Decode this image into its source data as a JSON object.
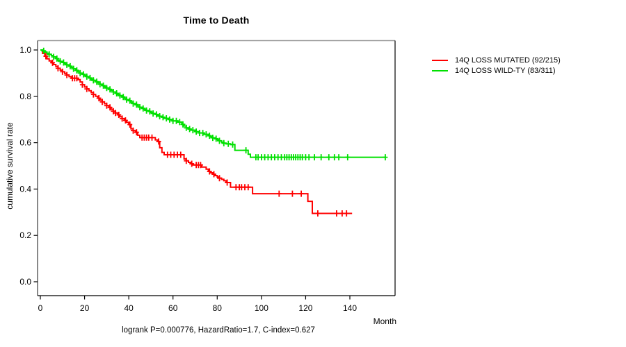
{
  "figure": {
    "title": "Time to Death",
    "x_axis_label": "Month",
    "y_axis_label": "cumulative survival rate",
    "stats_annotation": "logrank P=0.000776, HazardRatio=1.7, C-index=0.627"
  },
  "legend": {
    "entries": [
      {
        "label": "14Q LOSS MUTATED (92/215)",
        "color": "#ff0000"
      },
      {
        "label": "14Q LOSS WILD-TY (83/311)",
        "color": "#00e000"
      }
    ]
  },
  "chart_data": {
    "type": "line",
    "variant": "kaplan_meier_step_curve",
    "title": "Time to Death",
    "xlabel": "Month",
    "ylabel": "cumulative survival rate",
    "xlim": [
      0,
      160
    ],
    "ylim": [
      0.0,
      1.0
    ],
    "xticks": [
      0,
      20,
      40,
      60,
      80,
      100,
      120,
      140
    ],
    "yticks": [
      0.0,
      0.2,
      0.4,
      0.6,
      0.8,
      1.0
    ],
    "grid": false,
    "legend_position": "outside-top-right",
    "annotation": "logrank P=0.000776, HazardRatio=1.7, C-index=0.627",
    "axis_colors": {
      "top": "#9a9a9a",
      "left": "#3a3a3a",
      "bottom": "#000000",
      "right": "#000000"
    },
    "series": [
      {
        "name": "14Q LOSS MUTATED (92/215)",
        "color": "#ff0000",
        "steps": [
          [
            0,
            1.0
          ],
          [
            1,
            0.985
          ],
          [
            2,
            0.973
          ],
          [
            3,
            0.962
          ],
          [
            4,
            0.953
          ],
          [
            5,
            0.945
          ],
          [
            6,
            0.937
          ],
          [
            7,
            0.929
          ],
          [
            8,
            0.921
          ],
          [
            9,
            0.913
          ],
          [
            10,
            0.906
          ],
          [
            11,
            0.899
          ],
          [
            12,
            0.892
          ],
          [
            13,
            0.885
          ],
          [
            14,
            0.878
          ],
          [
            17,
            0.872
          ],
          [
            18,
            0.862
          ],
          [
            19,
            0.85
          ],
          [
            20,
            0.84
          ],
          [
            21,
            0.832
          ],
          [
            22,
            0.824
          ],
          [
            23,
            0.816
          ],
          [
            24,
            0.808
          ],
          [
            25,
            0.8
          ],
          [
            26,
            0.792
          ],
          [
            27,
            0.784
          ],
          [
            28,
            0.776
          ],
          [
            29,
            0.768
          ],
          [
            30,
            0.76
          ],
          [
            31,
            0.752
          ],
          [
            32,
            0.744
          ],
          [
            33,
            0.736
          ],
          [
            34,
            0.728
          ],
          [
            35,
            0.72
          ],
          [
            36,
            0.712
          ],
          [
            37,
            0.704
          ],
          [
            38,
            0.696
          ],
          [
            39,
            0.688
          ],
          [
            40,
            0.678
          ],
          [
            41,
            0.66
          ],
          [
            42,
            0.652
          ],
          [
            43,
            0.645
          ],
          [
            44,
            0.632
          ],
          [
            45,
            0.622
          ],
          [
            52,
            0.612
          ],
          [
            53,
            0.605
          ],
          [
            54,
            0.578
          ],
          [
            55,
            0.558
          ],
          [
            56,
            0.548
          ],
          [
            65,
            0.53
          ],
          [
            66,
            0.522
          ],
          [
            67,
            0.515
          ],
          [
            68,
            0.509
          ],
          [
            69,
            0.504
          ],
          [
            73,
            0.495
          ],
          [
            75,
            0.486
          ],
          [
            76,
            0.476
          ],
          [
            77,
            0.47
          ],
          [
            78,
            0.464
          ],
          [
            79,
            0.458
          ],
          [
            80,
            0.452
          ],
          [
            81,
            0.447
          ],
          [
            82,
            0.442
          ],
          [
            83,
            0.436
          ],
          [
            84,
            0.428
          ],
          [
            86,
            0.408
          ],
          [
            96,
            0.38
          ],
          [
            121,
            0.347
          ],
          [
            123,
            0.295
          ],
          [
            141,
            0.295
          ]
        ],
        "censor_marks_months": [
          2.5,
          5.5,
          8,
          10,
          12,
          14.5,
          15.5,
          16.5,
          19,
          21,
          24,
          26.5,
          28,
          30,
          31.5,
          33,
          34,
          35.5,
          37,
          38.5,
          40.5,
          42,
          43.5,
          46,
          47,
          48,
          49,
          50.5,
          53.5,
          57.5,
          59,
          60.5,
          62,
          63.5,
          66,
          68.5,
          70.5,
          71.5,
          72.5,
          76.5,
          78.5,
          81,
          84.5,
          88.5,
          90,
          91,
          92.5,
          94,
          108,
          114,
          118,
          125.5,
          134,
          136.5,
          138.5
        ]
      },
      {
        "name": "14Q LOSS WILD-TY (83/311)",
        "color": "#00e000",
        "steps": [
          [
            0,
            1.0
          ],
          [
            1,
            0.996
          ],
          [
            2,
            0.991
          ],
          [
            3,
            0.986
          ],
          [
            4,
            0.981
          ],
          [
            5,
            0.976
          ],
          [
            6,
            0.97
          ],
          [
            7,
            0.963
          ],
          [
            8,
            0.956
          ],
          [
            9,
            0.951
          ],
          [
            10,
            0.946
          ],
          [
            11,
            0.941
          ],
          [
            12,
            0.936
          ],
          [
            13,
            0.93
          ],
          [
            14,
            0.925
          ],
          [
            15,
            0.919
          ],
          [
            16,
            0.912
          ],
          [
            17,
            0.906
          ],
          [
            18,
            0.9
          ],
          [
            19,
            0.895
          ],
          [
            20,
            0.89
          ],
          [
            21,
            0.885
          ],
          [
            22,
            0.879
          ],
          [
            23,
            0.874
          ],
          [
            24,
            0.869
          ],
          [
            25,
            0.863
          ],
          [
            26,
            0.858
          ],
          [
            27,
            0.852
          ],
          [
            28,
            0.846
          ],
          [
            29,
            0.841
          ],
          [
            30,
            0.836
          ],
          [
            31,
            0.83
          ],
          [
            32,
            0.825
          ],
          [
            33,
            0.819
          ],
          [
            34,
            0.813
          ],
          [
            35,
            0.808
          ],
          [
            36,
            0.803
          ],
          [
            37,
            0.797
          ],
          [
            38,
            0.792
          ],
          [
            39,
            0.786
          ],
          [
            40,
            0.781
          ],
          [
            41,
            0.775
          ],
          [
            42,
            0.769
          ],
          [
            43,
            0.764
          ],
          [
            44,
            0.758
          ],
          [
            45,
            0.753
          ],
          [
            46,
            0.748
          ],
          [
            47,
            0.744
          ],
          [
            48,
            0.739
          ],
          [
            49,
            0.735
          ],
          [
            50,
            0.73
          ],
          [
            51,
            0.726
          ],
          [
            52,
            0.722
          ],
          [
            53,
            0.718
          ],
          [
            54,
            0.714
          ],
          [
            55,
            0.71
          ],
          [
            56,
            0.705
          ],
          [
            58,
            0.7
          ],
          [
            60,
            0.694
          ],
          [
            62,
            0.689
          ],
          [
            64,
            0.679
          ],
          [
            65,
            0.672
          ],
          [
            66,
            0.664
          ],
          [
            67,
            0.659
          ],
          [
            68,
            0.654
          ],
          [
            70,
            0.648
          ],
          [
            72,
            0.642
          ],
          [
            74,
            0.636
          ],
          [
            76,
            0.63
          ],
          [
            77,
            0.625
          ],
          [
            78,
            0.621
          ],
          [
            79,
            0.617
          ],
          [
            80,
            0.613
          ],
          [
            81,
            0.608
          ],
          [
            82,
            0.602
          ],
          [
            83,
            0.598
          ],
          [
            84,
            0.595
          ],
          [
            86,
            0.592
          ],
          [
            88,
            0.567
          ],
          [
            94,
            0.55
          ],
          [
            95,
            0.537
          ],
          [
            156,
            0.537
          ]
        ],
        "censor_marks_months": [
          1.5,
          4,
          6,
          7.5,
          9,
          10.5,
          12,
          13.5,
          15,
          16.5,
          18,
          19.5,
          21,
          22.5,
          24,
          25.5,
          27,
          28.5,
          30,
          31.5,
          33,
          34.5,
          36,
          37.5,
          39,
          40.5,
          42,
          43.5,
          45,
          46.5,
          48,
          49.5,
          51,
          52.5,
          54,
          55.5,
          57,
          58.5,
          60,
          61.5,
          63,
          64.5,
          66,
          67.5,
          69,
          70.5,
          72,
          73.5,
          75,
          76.5,
          78,
          79.5,
          81,
          83,
          85,
          87,
          93,
          97.5,
          98.5,
          100,
          101.5,
          103,
          104.5,
          106,
          107.5,
          109,
          110.5,
          111.5,
          112.5,
          113.5,
          114.5,
          115.5,
          116.5,
          117.5,
          118.5,
          120,
          121.5,
          124,
          127,
          130.5,
          133,
          135,
          139,
          156
        ]
      }
    ]
  }
}
